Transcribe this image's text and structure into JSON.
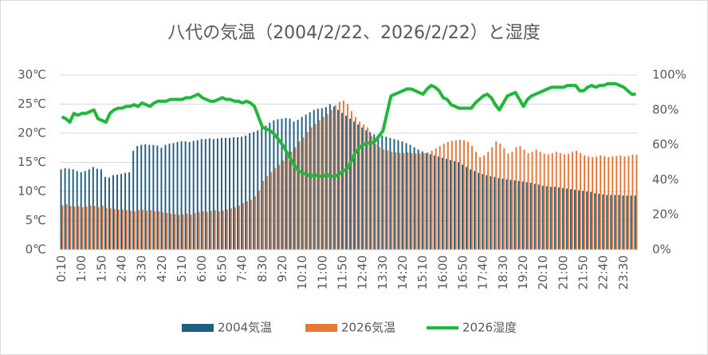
{
  "chart_data": {
    "type": "bar-line",
    "title": "八代の気温（2004/2/22、2026/2/22）と湿度",
    "categories": [
      "0:10",
      null,
      null,
      null,
      null,
      "1:00",
      null,
      null,
      null,
      null,
      "1:50",
      null,
      null,
      null,
      null,
      "2:40",
      null,
      null,
      null,
      null,
      "3:30",
      null,
      null,
      null,
      null,
      "4:20",
      null,
      null,
      null,
      null,
      "5:10",
      null,
      null,
      null,
      null,
      "6:00",
      null,
      null,
      null,
      null,
      "6:50",
      null,
      null,
      null,
      null,
      "7:40",
      null,
      null,
      null,
      null,
      "8:30",
      null,
      null,
      null,
      null,
      "9:20",
      null,
      null,
      null,
      null,
      "10:10",
      null,
      null,
      null,
      null,
      "11:00",
      null,
      null,
      null,
      null,
      "11:50",
      null,
      null,
      null,
      null,
      "12:40",
      null,
      null,
      null,
      null,
      "13:30",
      null,
      null,
      null,
      null,
      "14:20",
      null,
      null,
      null,
      null,
      "15:10",
      null,
      null,
      null,
      null,
      "16:00",
      null,
      null,
      null,
      null,
      "16:50",
      null,
      null,
      null,
      null,
      "17:40",
      null,
      null,
      null,
      null,
      "18:30",
      null,
      null,
      null,
      null,
      "19:20",
      null,
      null,
      null,
      null,
      "20:10",
      null,
      null,
      null,
      null,
      "21:00",
      null,
      null,
      null,
      null,
      "21:50",
      null,
      null,
      null,
      null,
      "22:40",
      null,
      null,
      null,
      null,
      "23:30",
      null,
      null,
      null
    ],
    "series": [
      {
        "name": "2004気温",
        "type": "bar",
        "color": "#1f5f7f",
        "values": [
          13.8,
          14,
          13.9,
          13.8,
          13.5,
          13.3,
          13.5,
          13.8,
          14.2,
          13.9,
          13.8,
          12.5,
          12.4,
          12.8,
          12.9,
          13,
          13.2,
          13.3,
          17,
          17.8,
          18,
          18.1,
          18,
          18,
          17.9,
          17.5,
          18,
          18.2,
          18.3,
          18.5,
          18.6,
          18.6,
          18.5,
          18.7,
          18.8,
          19,
          19,
          19.1,
          19,
          19.1,
          19.2,
          19.2,
          19.2,
          19.3,
          19.3,
          19.4,
          19.6,
          20,
          20.2,
          20.5,
          21,
          21.3,
          21.8,
          22.2,
          22.4,
          22.5,
          22.6,
          22.5,
          22,
          22.3,
          22.8,
          23.2,
          23.6,
          24,
          24.2,
          24.3,
          24.5,
          25,
          24.6,
          24,
          23.5,
          23,
          22.5,
          22,
          21.5,
          21,
          20.5,
          20.2,
          19.8,
          19.5,
          19.6,
          19.4,
          19.2,
          19,
          18.8,
          18.6,
          18.3,
          18,
          17.6,
          17.2,
          16.9,
          16.6,
          16.4,
          16.2,
          16,
          15.8,
          15.6,
          15.4,
          15.2,
          15,
          14.6,
          14.2,
          13.8,
          13.5,
          13.2,
          13,
          12.8,
          12.6,
          12.5,
          12.3,
          12.2,
          12.1,
          12,
          11.9,
          11.8,
          11.7,
          11.6,
          11.5,
          11.3,
          11.2,
          11,
          10.9,
          10.8,
          10.8,
          10.7,
          10.6,
          10.5,
          10.4,
          10.3,
          10.2,
          10.1,
          10,
          9.9,
          9.7,
          9.6,
          9.5,
          9.4,
          9.4,
          9.4,
          9.4,
          9.3,
          9.3,
          9.3,
          9.3
        ]
      },
      {
        "name": "2026気温",
        "type": "bar",
        "color": "#e8773a",
        "values": [
          7.6,
          7.8,
          7.5,
          7.4,
          7.5,
          7.3,
          7.4,
          7.6,
          7.5,
          7.3,
          7.6,
          7.2,
          7.1,
          7.0,
          6.9,
          6.9,
          6.8,
          6.7,
          6.6,
          6.8,
          6.9,
          6.7,
          6.8,
          6.6,
          6.6,
          6.4,
          6.3,
          6.2,
          6.1,
          6.0,
          6.1,
          6.2,
          6.0,
          6.3,
          6.5,
          6.6,
          6.5,
          6.7,
          6.8,
          6.6,
          6.7,
          6.9,
          7.1,
          7.3,
          7.6,
          8.0,
          8.3,
          8.6,
          9.2,
          10.2,
          11.8,
          12.6,
          13.3,
          14.0,
          14.6,
          15.3,
          16.0,
          16.8,
          17.6,
          18.6,
          19.3,
          20.2,
          21.0,
          21.6,
          22.2,
          22.8,
          23.3,
          24.0,
          24.8,
          25.4,
          25.6,
          25.0,
          23.8,
          22.8,
          22.0,
          21.5,
          21.0,
          19.5,
          18.2,
          17.6,
          17.2,
          17.0,
          16.8,
          16.7,
          16.6,
          16.6,
          16.7,
          16.6,
          16.5,
          16.5,
          16.6,
          16.7,
          17.0,
          17.4,
          17.8,
          18.2,
          18.5,
          18.7,
          18.8,
          18.9,
          18.8,
          18.5,
          17.8,
          16.8,
          15.9,
          16.2,
          16.8,
          17.6,
          18.6,
          18.2,
          17.4,
          16.5,
          16.8,
          17.6,
          17.8,
          17.2,
          16.6,
          16.8,
          17.2,
          16.8,
          16.5,
          16.4,
          16.6,
          16.8,
          16.6,
          16.4,
          16.5,
          16.8,
          17.0,
          16.6,
          16.2,
          16.0,
          15.9,
          16.0,
          16.2,
          16.1,
          15.9,
          16.0,
          16.1,
          16.2,
          16.0,
          16.1,
          16.3,
          16.3
        ]
      },
      {
        "name": "2026湿度",
        "type": "line",
        "axis": "y2",
        "color": "#1fb83a",
        "values": [
          76,
          75,
          73,
          78,
          77,
          78,
          78,
          79,
          80,
          75,
          74,
          73,
          78,
          80,
          81,
          81,
          82,
          82,
          83,
          82,
          84,
          83,
          82,
          84,
          85,
          85,
          85,
          86,
          86,
          86,
          86,
          87,
          87,
          88,
          89,
          87,
          86,
          85,
          85,
          86,
          87,
          86,
          86,
          85,
          85,
          84,
          85,
          84,
          82,
          76,
          70,
          69,
          68,
          66,
          63,
          60,
          56,
          52,
          48,
          45,
          44,
          43,
          42,
          43,
          42,
          42,
          43,
          42,
          42,
          43,
          45,
          46,
          50,
          55,
          58,
          60,
          61,
          61,
          62,
          65,
          68,
          78,
          88,
          89,
          90,
          91,
          92,
          92,
          91,
          90,
          89,
          92,
          94,
          93,
          91,
          87,
          86,
          83,
          82,
          81,
          81,
          81,
          81,
          84,
          86,
          88,
          89,
          87,
          83,
          80,
          84,
          88,
          89,
          90,
          86,
          82,
          86,
          88,
          89,
          90,
          91,
          92,
          93,
          93,
          93,
          93,
          94,
          94,
          94,
          91,
          91,
          93,
          94,
          93,
          94,
          94,
          95,
          95,
          95,
          94,
          93,
          91,
          89,
          89
        ]
      }
    ],
    "ylim": [
      0,
      30
    ],
    "yticks": [
      {
        "value": 0,
        "label": "0℃"
      },
      {
        "value": 5,
        "label": "5℃"
      },
      {
        "value": 10,
        "label": "10℃"
      },
      {
        "value": 15,
        "label": "15℃"
      },
      {
        "value": 20,
        "label": "20℃"
      },
      {
        "value": 25,
        "label": "25℃"
      },
      {
        "value": 30,
        "label": "30℃"
      }
    ],
    "y2lim": [
      0,
      100
    ],
    "y2ticks": [
      {
        "value": 0,
        "label": "0%"
      },
      {
        "value": 20,
        "label": "20%"
      },
      {
        "value": 40,
        "label": "40%"
      },
      {
        "value": 60,
        "label": "60%"
      },
      {
        "value": 80,
        "label": "80%"
      },
      {
        "value": 100,
        "label": "100%"
      }
    ],
    "grid": true,
    "legend": "bottom"
  }
}
